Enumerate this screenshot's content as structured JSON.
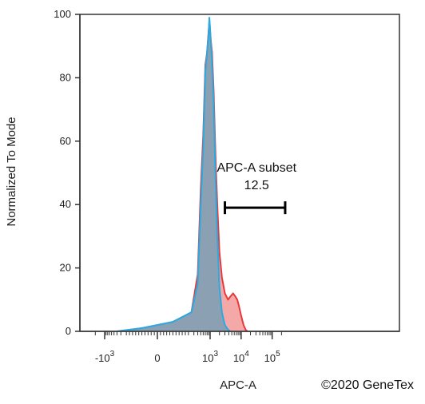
{
  "chart_data": {
    "type": "area",
    "xlabel": "APC-A",
    "ylabel": "Normalized To Mode",
    "x_scale": "biexponential",
    "x_ticks": [
      {
        "value": -1000,
        "base": "-10",
        "exp": "3"
      },
      {
        "value": 0,
        "base": "0",
        "exp": ""
      },
      {
        "value": 1000,
        "base": "10",
        "exp": "3"
      },
      {
        "value": 10000,
        "base": "10",
        "exp": "4"
      },
      {
        "value": 100000,
        "base": "10",
        "exp": "5"
      }
    ],
    "xlim": [
      -2000,
      262144
    ],
    "ylim": [
      0,
      100
    ],
    "y_ticks": [
      "0",
      "20",
      "40",
      "60",
      "80",
      "100"
    ],
    "series": [
      {
        "color": "#e8393a",
        "fill": "#f4a3a3",
        "points": [
          [
            -400,
            0
          ],
          [
            -100,
            1
          ],
          [
            0,
            2
          ],
          [
            100,
            3
          ],
          [
            250,
            6
          ],
          [
            400,
            18
          ],
          [
            500,
            45
          ],
          [
            600,
            62
          ],
          [
            700,
            84
          ],
          [
            800,
            88
          ],
          [
            900,
            95
          ],
          [
            950,
            98
          ],
          [
            1050,
            92
          ],
          [
            1150,
            88
          ],
          [
            1300,
            76
          ],
          [
            1500,
            55
          ],
          [
            1700,
            40
          ],
          [
            2000,
            25
          ],
          [
            2400,
            17
          ],
          [
            3000,
            12
          ],
          [
            3800,
            10
          ],
          [
            4500,
            11
          ],
          [
            5500,
            12
          ],
          [
            6500,
            11
          ],
          [
            7500,
            10
          ],
          [
            8500,
            8
          ],
          [
            10000,
            5
          ],
          [
            12000,
            2
          ],
          [
            14000,
            0.5
          ],
          [
            16000,
            0
          ]
        ]
      },
      {
        "color": "#29aae1",
        "fill": "#7f9fb4",
        "points": [
          [
            -400,
            0
          ],
          [
            -100,
            1
          ],
          [
            0,
            2
          ],
          [
            100,
            3
          ],
          [
            250,
            6
          ],
          [
            400,
            15
          ],
          [
            500,
            40
          ],
          [
            600,
            58
          ],
          [
            700,
            82
          ],
          [
            800,
            88
          ],
          [
            900,
            94
          ],
          [
            950,
            99
          ],
          [
            1050,
            92
          ],
          [
            1150,
            85
          ],
          [
            1300,
            72
          ],
          [
            1500,
            48
          ],
          [
            1700,
            30
          ],
          [
            2000,
            14
          ],
          [
            2400,
            6
          ],
          [
            3000,
            2
          ],
          [
            3800,
            0.5
          ],
          [
            4500,
            0
          ]
        ]
      }
    ],
    "gate": {
      "name": "APC-A subset",
      "value": "12.5",
      "x_start": 3000,
      "x_end": 262144,
      "y": 39
    }
  },
  "copyright": "©2020 GeneTex"
}
